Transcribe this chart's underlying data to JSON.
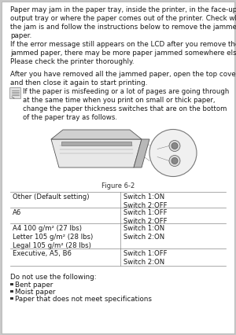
{
  "bg_color": "#c8c8c8",
  "page_bg": "#ffffff",
  "text_color": "#1a1a1a",
  "paragraph1": "Paper may jam in the paper tray, inside the printer, in the face-up\noutput tray or where the paper comes out of the printer. Check where\nthe jam is and follow the instructions below to remove the jammed\npaper.",
  "paragraph2": "If the error message still appears on the LCD after you remove the\njammed paper, there may be more paper jammed somewhere else.\nPlease check the printer thoroughly.",
  "paragraph3": "After you have removed all the jammed paper, open the top cover\nand then close it again to start printing.",
  "note_text": "If the paper is misfeeding or a lot of pages are going through\nat the same time when you print on small or thick paper,\nchange the paper thickness switches that are on the bottom\nof the paper tray as follows.",
  "figure_caption": "Figure 6-2",
  "table_rows": [
    [
      "Other (Default setting)",
      "Switch 1:ON\nSwitch 2:OFF"
    ],
    [
      "A6",
      "Switch 1:OFF\nSwitch 2:OFF"
    ],
    [
      "A4 100 g/m² (27 lbs)\nLetter 105 g/m² (28 lbs)\nLegal 105 g/m² (28 lbs)",
      "Switch 1:ON\nSwitch 2:ON"
    ],
    [
      "Executive, A5, B6",
      "Switch 1:OFF\nSwitch 2:ON"
    ]
  ],
  "footer_title": "Do not use the following:",
  "footer_items": [
    "Bent paper",
    "Moist paper",
    "Paper that does not meet specifications"
  ],
  "font_size_body": 6.3,
  "font_size_note": 6.1,
  "font_size_table": 6.1,
  "font_size_caption": 6.0,
  "lm": 13,
  "rm": 287,
  "col_div": 153
}
